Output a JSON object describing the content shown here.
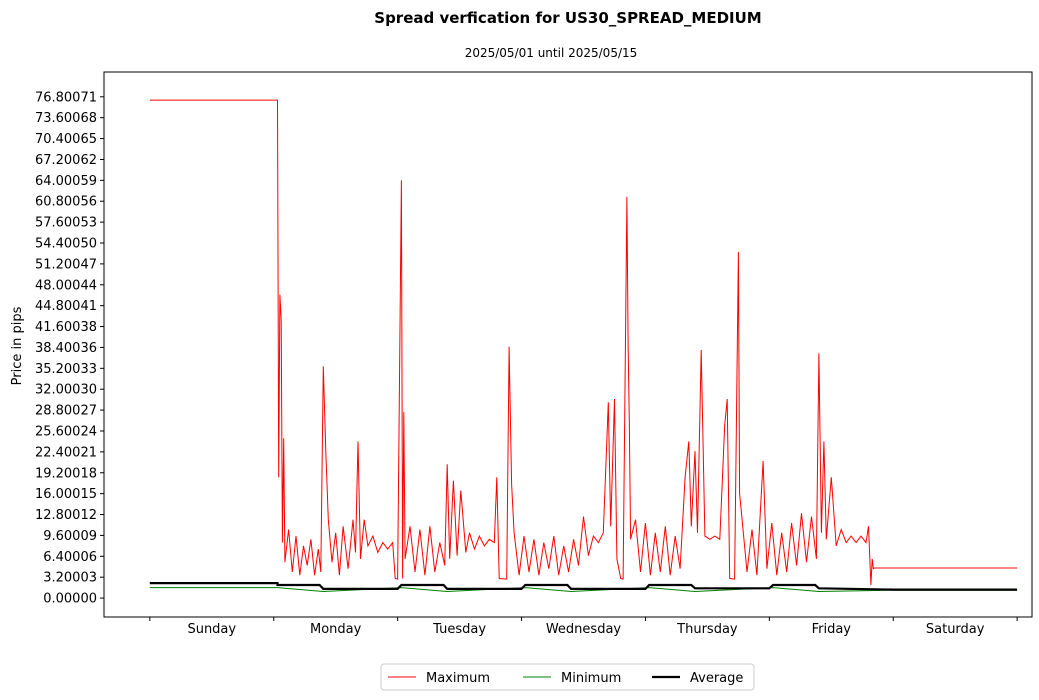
{
  "chart_data": {
    "type": "line",
    "title": "Spread verfication for US30_SPREAD_MEDIUM",
    "subtitle": "2025/05/01 until 2025/05/15",
    "xlabel": "",
    "ylabel": "Price in pips",
    "ylim": [
      -2.9,
      80.6
    ],
    "xlim": [
      -0.37,
      7.12
    ],
    "grid": false,
    "legend_position": "bottom-center",
    "yticks": [
      "0.00000",
      "3.20003",
      "6.40006",
      "9.60009",
      "12.80012",
      "16.00015",
      "19.20018",
      "22.40021",
      "25.60024",
      "28.80027",
      "32.00030",
      "35.20033",
      "38.40036",
      "41.60038",
      "44.80041",
      "48.00044",
      "51.20047",
      "54.40050",
      "57.60053",
      "60.80056",
      "64.00059",
      "67.20062",
      "70.40065",
      "73.60068",
      "76.80071"
    ],
    "categories": [
      "Sunday",
      "Monday",
      "Tuesday",
      "Wednesday",
      "Thursday",
      "Friday",
      "Saturday"
    ],
    "day_boundaries": [
      0,
      1,
      2,
      3,
      4,
      5,
      6,
      7
    ],
    "series": [
      {
        "name": "Maximum",
        "color": "#ff0000",
        "width": 1,
        "points": [
          [
            0.0,
            76.3
          ],
          [
            1.03,
            76.3
          ],
          [
            1.04,
            18.5
          ],
          [
            1.05,
            46.5
          ],
          [
            1.06,
            42.5
          ],
          [
            1.07,
            8.5
          ],
          [
            1.08,
            24.5
          ],
          [
            1.09,
            5.5
          ],
          [
            1.12,
            10.5
          ],
          [
            1.15,
            4.0
          ],
          [
            1.18,
            9.5
          ],
          [
            1.21,
            3.5
          ],
          [
            1.24,
            8.0
          ],
          [
            1.27,
            5.0
          ],
          [
            1.3,
            9.0
          ],
          [
            1.33,
            3.5
          ],
          [
            1.36,
            7.5
          ],
          [
            1.38,
            4.0
          ],
          [
            1.4,
            35.5
          ],
          [
            1.42,
            22.5
          ],
          [
            1.44,
            12.0
          ],
          [
            1.47,
            5.5
          ],
          [
            1.5,
            10.0
          ],
          [
            1.53,
            3.5
          ],
          [
            1.56,
            11.0
          ],
          [
            1.6,
            4.5
          ],
          [
            1.64,
            12.0
          ],
          [
            1.66,
            7.0
          ],
          [
            1.68,
            24.0
          ],
          [
            1.7,
            6.0
          ],
          [
            1.73,
            12.0
          ],
          [
            1.76,
            8.0
          ],
          [
            1.8,
            9.5
          ],
          [
            1.84,
            7.0
          ],
          [
            1.88,
            8.5
          ],
          [
            1.92,
            7.5
          ],
          [
            1.96,
            8.5
          ],
          [
            1.98,
            3.0
          ],
          [
            2.0,
            2.9
          ],
          [
            2.03,
            64.0
          ],
          [
            2.04,
            3.0
          ],
          [
            2.05,
            28.5
          ],
          [
            2.06,
            6.0
          ],
          [
            2.1,
            11.0
          ],
          [
            2.14,
            4.0
          ],
          [
            2.18,
            10.5
          ],
          [
            2.22,
            3.5
          ],
          [
            2.26,
            11.0
          ],
          [
            2.3,
            4.0
          ],
          [
            2.34,
            8.5
          ],
          [
            2.38,
            5.0
          ],
          [
            2.4,
            20.5
          ],
          [
            2.42,
            6.0
          ],
          [
            2.45,
            18.0
          ],
          [
            2.48,
            6.5
          ],
          [
            2.51,
            16.5
          ],
          [
            2.55,
            7.0
          ],
          [
            2.58,
            10.0
          ],
          [
            2.62,
            7.5
          ],
          [
            2.66,
            9.5
          ],
          [
            2.7,
            8.0
          ],
          [
            2.74,
            9.0
          ],
          [
            2.78,
            8.5
          ],
          [
            2.8,
            18.5
          ],
          [
            2.82,
            3.0
          ],
          [
            2.88,
            2.9
          ],
          [
            2.9,
            38.5
          ],
          [
            2.92,
            17.5
          ],
          [
            2.94,
            10.0
          ],
          [
            2.98,
            3.5
          ],
          [
            3.02,
            9.5
          ],
          [
            3.06,
            4.0
          ],
          [
            3.1,
            9.0
          ],
          [
            3.14,
            3.5
          ],
          [
            3.18,
            8.5
          ],
          [
            3.22,
            4.5
          ],
          [
            3.26,
            9.5
          ],
          [
            3.3,
            3.5
          ],
          [
            3.34,
            8.0
          ],
          [
            3.38,
            4.0
          ],
          [
            3.42,
            9.0
          ],
          [
            3.46,
            5.0
          ],
          [
            3.5,
            12.5
          ],
          [
            3.54,
            6.5
          ],
          [
            3.58,
            9.5
          ],
          [
            3.62,
            8.5
          ],
          [
            3.66,
            10.0
          ],
          [
            3.7,
            30.0
          ],
          [
            3.72,
            11.0
          ],
          [
            3.75,
            30.5
          ],
          [
            3.77,
            6.0
          ],
          [
            3.8,
            3.0
          ],
          [
            3.82,
            2.9
          ],
          [
            3.85,
            61.5
          ],
          [
            3.86,
            39.0
          ],
          [
            3.87,
            27.0
          ],
          [
            3.88,
            9.0
          ],
          [
            3.92,
            12.0
          ],
          [
            3.96,
            4.0
          ],
          [
            4.0,
            11.5
          ],
          [
            4.04,
            3.5
          ],
          [
            4.08,
            10.0
          ],
          [
            4.12,
            4.0
          ],
          [
            4.16,
            11.0
          ],
          [
            4.2,
            3.5
          ],
          [
            4.24,
            9.5
          ],
          [
            4.28,
            4.5
          ],
          [
            4.32,
            18.5
          ],
          [
            4.35,
            24.0
          ],
          [
            4.37,
            11.0
          ],
          [
            4.4,
            22.5
          ],
          [
            4.42,
            10.0
          ],
          [
            4.45,
            38.0
          ],
          [
            4.48,
            9.5
          ],
          [
            4.52,
            9.0
          ],
          [
            4.56,
            9.5
          ],
          [
            4.6,
            9.0
          ],
          [
            4.64,
            26.5
          ],
          [
            4.66,
            30.5
          ],
          [
            4.68,
            3.0
          ],
          [
            4.72,
            2.9
          ],
          [
            4.75,
            53.0
          ],
          [
            4.76,
            16.0
          ],
          [
            4.78,
            12.0
          ],
          [
            4.82,
            4.0
          ],
          [
            4.86,
            10.5
          ],
          [
            4.9,
            3.5
          ],
          [
            4.95,
            21.0
          ],
          [
            4.98,
            4.5
          ],
          [
            5.02,
            11.5
          ],
          [
            5.06,
            3.5
          ],
          [
            5.1,
            10.0
          ],
          [
            5.14,
            4.0
          ],
          [
            5.18,
            11.5
          ],
          [
            5.22,
            5.0
          ],
          [
            5.26,
            13.0
          ],
          [
            5.3,
            5.5
          ],
          [
            5.34,
            12.5
          ],
          [
            5.38,
            6.0
          ],
          [
            5.4,
            37.5
          ],
          [
            5.42,
            10.0
          ],
          [
            5.44,
            24.0
          ],
          [
            5.46,
            9.0
          ],
          [
            5.5,
            18.5
          ],
          [
            5.54,
            8.0
          ],
          [
            5.58,
            10.5
          ],
          [
            5.62,
            8.5
          ],
          [
            5.66,
            9.5
          ],
          [
            5.7,
            8.5
          ],
          [
            5.74,
            9.5
          ],
          [
            5.78,
            8.5
          ],
          [
            5.8,
            11.0
          ],
          [
            5.82,
            2.0
          ],
          [
            5.83,
            6.0
          ],
          [
            5.84,
            4.5
          ],
          [
            5.85,
            4.6
          ],
          [
            6.0,
            4.6
          ],
          [
            7.0,
            4.6
          ]
        ]
      },
      {
        "name": "Minimum",
        "color": "#008000",
        "width": 1,
        "points": [
          [
            0.0,
            1.6
          ],
          [
            1.0,
            1.6
          ],
          [
            1.03,
            1.6
          ],
          [
            1.4,
            1.0
          ],
          [
            2.03,
            1.6
          ],
          [
            2.4,
            1.0
          ],
          [
            3.03,
            1.6
          ],
          [
            3.4,
            1.0
          ],
          [
            4.03,
            1.6
          ],
          [
            4.4,
            1.0
          ],
          [
            5.03,
            1.6
          ],
          [
            5.4,
            1.0
          ],
          [
            6.0,
            1.2
          ],
          [
            7.0,
            1.2
          ]
        ]
      },
      {
        "name": "Average",
        "color": "#000000",
        "width": 2.2,
        "points": [
          [
            0.0,
            2.3
          ],
          [
            1.0,
            2.3
          ],
          [
            1.03,
            2.3
          ],
          [
            1.03,
            2.0
          ],
          [
            1.37,
            2.0
          ],
          [
            1.4,
            1.4
          ],
          [
            2.0,
            1.4
          ],
          [
            2.03,
            2.0
          ],
          [
            2.37,
            2.0
          ],
          [
            2.4,
            1.4
          ],
          [
            3.0,
            1.4
          ],
          [
            3.03,
            2.0
          ],
          [
            3.37,
            2.0
          ],
          [
            3.4,
            1.4
          ],
          [
            4.0,
            1.4
          ],
          [
            4.03,
            2.0
          ],
          [
            4.37,
            2.0
          ],
          [
            4.4,
            1.5
          ],
          [
            5.0,
            1.5
          ],
          [
            5.03,
            2.0
          ],
          [
            5.37,
            2.0
          ],
          [
            5.4,
            1.5
          ],
          [
            6.0,
            1.3
          ],
          [
            7.0,
            1.3
          ]
        ]
      }
    ]
  }
}
